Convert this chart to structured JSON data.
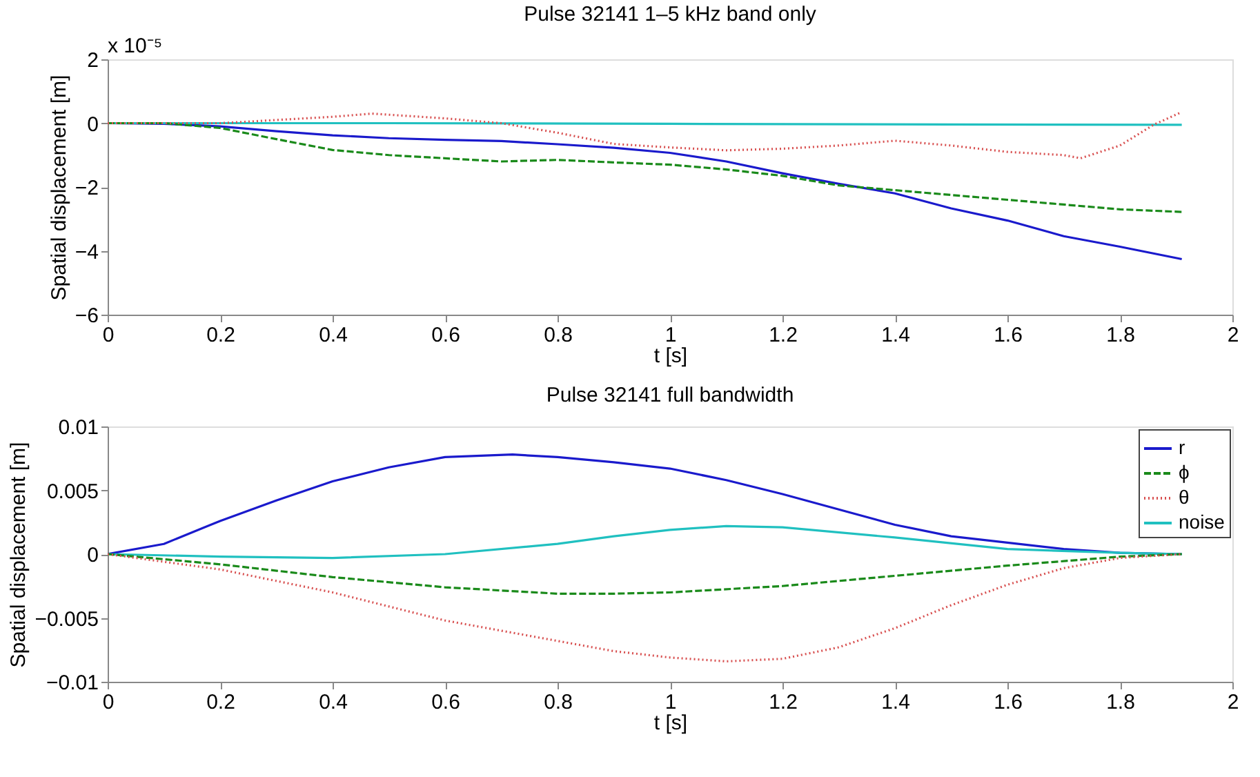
{
  "chart_data": [
    {
      "type": "line",
      "title": "Pulse 32141 1–5 kHz band only",
      "xlabel": "t [s]",
      "ylabel": "Spatial displacement [m]",
      "annotations": [
        "x 10⁻⁵"
      ],
      "xlim": [
        0,
        2
      ],
      "xticks": [
        0,
        0.2,
        0.4,
        0.6,
        0.8,
        1,
        1.2,
        1.4,
        1.6,
        1.8,
        2
      ],
      "ylim": [
        -6,
        2
      ],
      "yticks": [
        -6,
        -4,
        -2,
        0,
        2
      ],
      "grid": false,
      "legend": false,
      "series": [
        {
          "color": "#1a1acc",
          "line_style": "solid",
          "x": [
            0,
            0.1,
            0.2,
            0.3,
            0.4,
            0.5,
            0.6,
            0.7,
            0.8,
            0.9,
            1.0,
            1.1,
            1.2,
            1.3,
            1.4,
            1.5,
            1.6,
            1.7,
            1.8,
            1.91
          ],
          "values": [
            0,
            -0.02,
            -0.1,
            -0.25,
            -0.38,
            -0.47,
            -0.52,
            -0.56,
            -0.66,
            -0.77,
            -0.93,
            -1.2,
            -1.57,
            -1.9,
            -2.2,
            -2.67,
            -3.05,
            -3.54,
            -3.87,
            -4.26
          ]
        },
        {
          "color": "#1a8a1a",
          "line_style": "dashed",
          "x": [
            0,
            0.1,
            0.2,
            0.3,
            0.4,
            0.5,
            0.6,
            0.7,
            0.8,
            0.9,
            1.0,
            1.1,
            1.2,
            1.3,
            1.4,
            1.5,
            1.6,
            1.7,
            1.8,
            1.91
          ],
          "values": [
            0,
            0,
            -0.15,
            -0.5,
            -0.84,
            -1.0,
            -1.1,
            -1.2,
            -1.15,
            -1.23,
            -1.3,
            -1.45,
            -1.65,
            -1.95,
            -2.1,
            -2.25,
            -2.4,
            -2.55,
            -2.7,
            -2.78
          ]
        },
        {
          "color": "#d85050",
          "line_style": "dotted",
          "x": [
            0,
            0.1,
            0.2,
            0.3,
            0.4,
            0.47,
            0.6,
            0.7,
            0.8,
            0.9,
            1.0,
            1.1,
            1.2,
            1.3,
            1.4,
            1.5,
            1.6,
            1.7,
            1.73,
            1.8,
            1.86,
            1.91
          ],
          "values": [
            0,
            0,
            0,
            0.1,
            0.2,
            0.3,
            0.15,
            0,
            -0.3,
            -0.65,
            -0.76,
            -0.85,
            -0.8,
            -0.7,
            -0.55,
            -0.7,
            -0.9,
            -1.0,
            -1.1,
            -0.7,
            -0.05,
            0.35
          ]
        },
        {
          "color": "#20c0c0",
          "line_style": "solid",
          "x": [
            0,
            0.5,
            1.0,
            1.5,
            1.91
          ],
          "values": [
            0,
            0,
            -0.02,
            -0.04,
            -0.05
          ]
        }
      ]
    },
    {
      "type": "line",
      "title": "Pulse 32141 full bandwidth",
      "xlabel": "t [s]",
      "ylabel": "Spatial displacement [m]",
      "xlim": [
        0,
        2
      ],
      "xticks": [
        0,
        0.2,
        0.4,
        0.6,
        0.8,
        1,
        1.2,
        1.4,
        1.6,
        1.8,
        2
      ],
      "ylim": [
        -0.01,
        0.01
      ],
      "yticks": [
        -0.01,
        -0.005,
        0,
        0.005,
        0.01
      ],
      "grid": false,
      "legend": "top right",
      "series": [
        {
          "name": "r",
          "color": "#1a1acc",
          "line_style": "solid",
          "x": [
            0,
            0.1,
            0.2,
            0.3,
            0.4,
            0.5,
            0.6,
            0.72,
            0.8,
            0.9,
            1.0,
            1.1,
            1.2,
            1.3,
            1.4,
            1.5,
            1.6,
            1.7,
            1.8,
            1.91
          ],
          "values": [
            0,
            0.0008,
            0.0026,
            0.0042,
            0.0057,
            0.0068,
            0.0076,
            0.0078,
            0.0076,
            0.0072,
            0.0067,
            0.0058,
            0.0047,
            0.0035,
            0.0023,
            0.0014,
            0.0009,
            0.0004,
            0.0001,
            0
          ]
        },
        {
          "name": "ϕ",
          "color": "#1a8a1a",
          "line_style": "dashed",
          "x": [
            0,
            0.2,
            0.4,
            0.6,
            0.8,
            0.9,
            1.0,
            1.2,
            1.4,
            1.6,
            1.8,
            1.91
          ],
          "values": [
            0,
            -0.0008,
            -0.0018,
            -0.0026,
            -0.0031,
            -0.0031,
            -0.003,
            -0.0025,
            -0.0017,
            -0.0009,
            -0.0002,
            0
          ]
        },
        {
          "name": "θ",
          "color": "#d85050",
          "line_style": "dotted",
          "x": [
            0,
            0.2,
            0.4,
            0.6,
            0.8,
            0.9,
            1.0,
            1.1,
            1.2,
            1.3,
            1.4,
            1.5,
            1.6,
            1.7,
            1.8,
            1.91
          ],
          "values": [
            0,
            -0.0012,
            -0.003,
            -0.0052,
            -0.0068,
            -0.0076,
            -0.0081,
            -0.0084,
            -0.0082,
            -0.0073,
            -0.0058,
            -0.004,
            -0.0024,
            -0.0011,
            -0.0003,
            0
          ]
        },
        {
          "name": "noise",
          "color": "#20c0c0",
          "line_style": "solid",
          "x": [
            0,
            0.2,
            0.4,
            0.6,
            0.8,
            0.9,
            1.0,
            1.1,
            1.2,
            1.4,
            1.6,
            1.8,
            1.91
          ],
          "values": [
            0,
            -0.0002,
            -0.0003,
            0,
            0.0008,
            0.0014,
            0.0019,
            0.0022,
            0.0021,
            0.0013,
            0.0004,
            0.0001,
            0
          ]
        }
      ]
    }
  ]
}
